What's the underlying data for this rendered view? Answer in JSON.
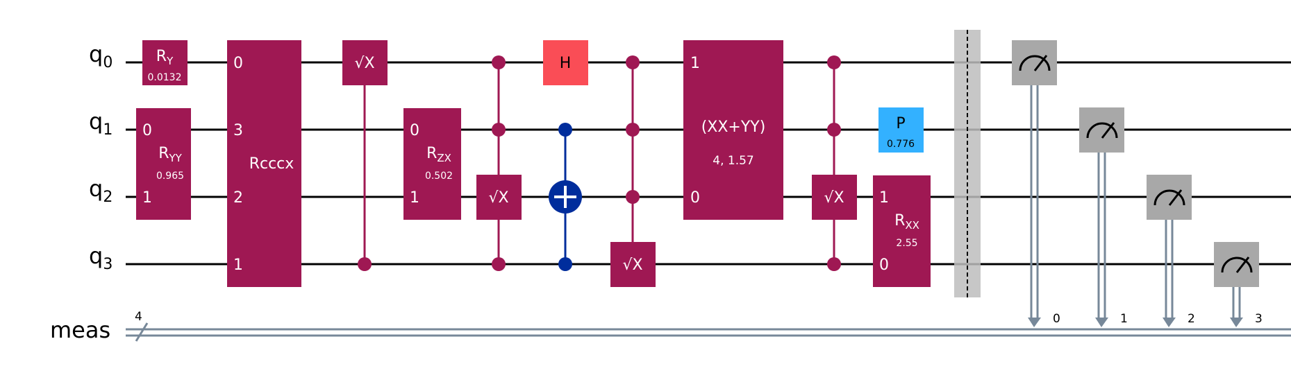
{
  "wires": {
    "q0": {
      "base": "q",
      "sub": "0"
    },
    "q1": {
      "base": "q",
      "sub": "1"
    },
    "q2": {
      "base": "q",
      "sub": "2"
    },
    "q3": {
      "base": "q",
      "sub": "3"
    },
    "meas": {
      "label": "meas",
      "width": "4"
    }
  },
  "gates": {
    "ry": {
      "base": "R",
      "sub": "Y",
      "param": "0.0132"
    },
    "ryy": {
      "q_top": "0",
      "q_bot": "1",
      "base": "R",
      "sub": "YY",
      "param": "0.965"
    },
    "rcccx": {
      "label": "Rcccx",
      "q0": "0",
      "q1": "3",
      "q2": "2",
      "q3": "1"
    },
    "sx_1": {
      "label": "√X"
    },
    "rzx": {
      "q_top": "0",
      "q_bot": "1",
      "base": "R",
      "sub": "ZX",
      "param": "0.502"
    },
    "sx_2": {
      "label": "√X"
    },
    "h": {
      "label": "H"
    },
    "sx_3": {
      "label": "√X"
    },
    "xxyy": {
      "q_top": "1",
      "q_bot": "0",
      "label": "(XX+YY)",
      "param": "4, 1.57"
    },
    "sx_4": {
      "label": "√X"
    },
    "p": {
      "label": "P",
      "param": "0.776"
    },
    "rxx": {
      "q_top": "1",
      "q_bot": "0",
      "base": "R",
      "sub": "XX",
      "param": "2.55"
    }
  },
  "measurements": {
    "m0": "0",
    "m1": "1",
    "m2": "2",
    "m3": "3"
  },
  "colors": {
    "gate": "#9f1853",
    "h_gate": "#fa4d56",
    "p_gate": "#33b1ff",
    "cnot": "#002d9c",
    "measure": "#a8a8a8",
    "classical": "#778899",
    "barrier": "#bdbdbd"
  }
}
